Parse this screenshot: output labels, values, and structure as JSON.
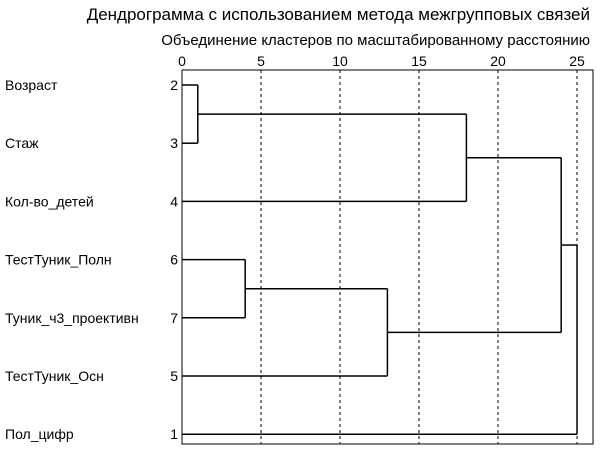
{
  "chart_data": {
    "type": "dendrogram",
    "title": "Дендрограмма с использованием метода межгрупповых связей",
    "subtitle": "Объединение кластеров по масштабированному расстоянию",
    "xlim": [
      0,
      25
    ],
    "ticks": [
      0,
      5,
      10,
      15,
      20,
      25
    ],
    "grid": "dashed vertical lines at 5, 10, 15, 20, 25",
    "leaves": [
      {
        "label": "Возраст",
        "number": "2"
      },
      {
        "label": "Стаж",
        "number": "3"
      },
      {
        "label": "Кол-во_детей",
        "number": "4"
      },
      {
        "label": "ТестТуник_Полн",
        "number": "6"
      },
      {
        "label": "Туник_ч3_проективн",
        "number": "7"
      },
      {
        "label": "ТестТуник_Осн",
        "number": "5"
      },
      {
        "label": "Пол_цифр",
        "number": "1"
      }
    ],
    "merges": [
      {
        "a": "leaf:0",
        "b": "leaf:1",
        "distance": 1
      },
      {
        "a": "leaf:3",
        "b": "leaf:4",
        "distance": 4
      },
      {
        "a": "merge:1",
        "b": "leaf:5",
        "distance": 13
      },
      {
        "a": "merge:0",
        "b": "leaf:2",
        "distance": 18
      },
      {
        "a": "merge:3",
        "b": "merge:2",
        "distance": 24
      },
      {
        "a": "merge:4",
        "b": "leaf:6",
        "distance": 25
      }
    ]
  }
}
